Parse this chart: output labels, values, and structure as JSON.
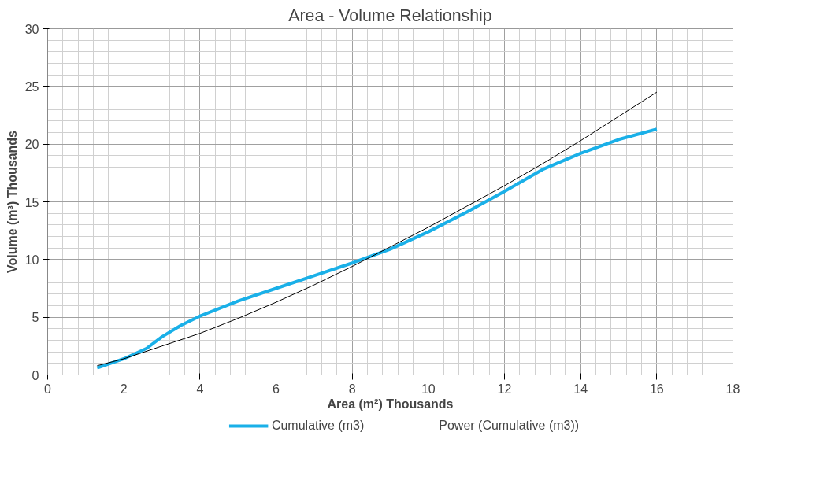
{
  "chart_data": {
    "type": "line",
    "title": "Area - Volume Relationship",
    "xlabel": "Area (m²) Thousands",
    "ylabel": "Volume (m³) Thousands",
    "xlim": [
      0,
      18
    ],
    "ylim": [
      0,
      30
    ],
    "xticks": [
      0,
      2,
      4,
      6,
      8,
      10,
      12,
      14,
      16,
      18
    ],
    "yticks": [
      0,
      5,
      10,
      15,
      20,
      25,
      30
    ],
    "grid": true,
    "legend": "bottom",
    "marker": "none",
    "series": [
      {
        "name": "Cumulative (m3)",
        "color": "#1ab0e8",
        "x": [
          1.3,
          2,
          2.6,
          3,
          3.5,
          4,
          5,
          6,
          7,
          8,
          9,
          10,
          11,
          12,
          13,
          14,
          15,
          16
        ],
        "values": [
          0.6,
          1.4,
          2.3,
          3.3,
          4.3,
          5.1,
          6.4,
          7.5,
          8.6,
          9.7,
          10.9,
          12.4,
          14.1,
          15.9,
          17.8,
          19.2,
          20.4,
          21.3
        ]
      },
      {
        "name": "Power (Cumulative (m3))",
        "color": "#000000",
        "x": [
          1.3,
          2,
          3,
          4,
          5,
          6,
          7,
          8,
          9,
          10,
          11,
          12,
          13,
          14,
          15,
          16
        ],
        "values": [
          0.8,
          1.4,
          2.5,
          3.6,
          4.9,
          6.3,
          7.8,
          9.4,
          11.1,
          12.8,
          14.6,
          16.4,
          18.3,
          20.3,
          22.4,
          24.5
        ]
      }
    ]
  }
}
